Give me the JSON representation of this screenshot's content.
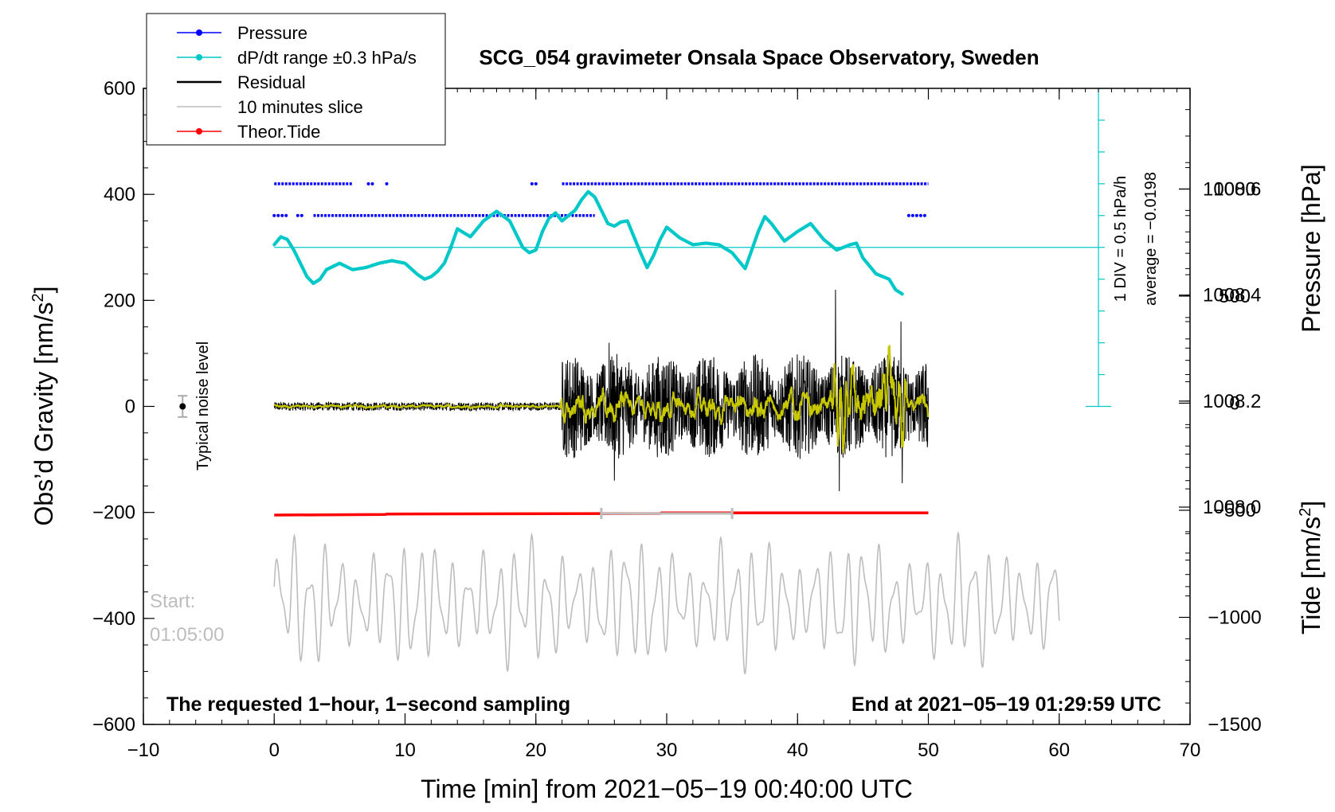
{
  "chart_data": {
    "type": "line",
    "title": "SCG_054 gravimeter Onsala Space Observatory, Sweden",
    "xlabel": "Time [min] from 2021−05−19 00:40:00 UTC",
    "ylabel_left": "Obs’d Gravity [nm/s",
    "ylabel_left_sup": "2",
    "ylabel_left_close": "]",
    "ylabel_right_pressure": "Pressure [hPa]",
    "ylabel_right_tide": "Tide [nm/s",
    "ylabel_right_tide_sup": "2",
    "ylabel_right_tide_close": "]",
    "xlim": [
      -10,
      70
    ],
    "ylim": [
      -600,
      600
    ],
    "x_ticks": [
      -10,
      0,
      10,
      20,
      30,
      40,
      50,
      60,
      70
    ],
    "x_tick_labels": [
      "−10",
      "0",
      "10",
      "20",
      "30",
      "40",
      "50",
      "60",
      "70"
    ],
    "y_ticks": [
      -600,
      -400,
      -200,
      0,
      200,
      400,
      600
    ],
    "y_tick_labels": [
      "−600",
      "−400",
      "−200",
      "0",
      "200",
      "400",
      "600"
    ],
    "pressure_ticks": [
      1008.0,
      1008.2,
      1008.4,
      1008.6
    ],
    "pressure_tick_labels": [
      "1008.0",
      "1008.2",
      "1008.4",
      "1008.6"
    ],
    "pressure_axis_map": {
      "p_at_600": 1008.79,
      "hpa_per_gravity_unit": 0.001
    },
    "tide_ticks": [
      -1500,
      -1000,
      -500,
      0,
      500,
      1000
    ],
    "tide_tick_labels": [
      "−1500",
      "−1000",
      "−500",
      "0",
      "500",
      "1000"
    ],
    "tide_axis_map": {
      "tide_at_minus600": -1500,
      "tide_per_gravity_unit": 2.475
    },
    "legend": [
      {
        "label": "Pressure",
        "color": "#0000ff",
        "style": "line-dot"
      },
      {
        "label": "dP/dt range ±0.3 hPa/s",
        "color": "#00c8c8",
        "style": "line-dot"
      },
      {
        "label": "Residual",
        "color": "#000000",
        "style": "line"
      },
      {
        "label": "10 minutes slice",
        "color": "#bdbdbd",
        "style": "line"
      },
      {
        "label": "Theor.Tide",
        "color": "#ff0000",
        "style": "line-dot"
      }
    ],
    "annotations": {
      "noise_label": "Typical noise level",
      "start_label": "Start:",
      "start_time": "01:05:00",
      "bottom_left": "The requested 1−hour, 1−second sampling",
      "bottom_right": "End at 2021−05−19 01:29:59 UTC",
      "div_label": "1 DIV = 0.5 hPa/h",
      "average_label": "average = −0.0198"
    },
    "noise_level": {
      "x": -7,
      "y": 0,
      "err": 20
    },
    "pressure_upper_level": 420,
    "pressure_lower_level": 360,
    "pressure_upper_segments": [
      [
        0,
        6
      ],
      [
        7.2,
        7.6
      ],
      [
        8.6,
        8.9
      ],
      [
        19.7,
        20.1
      ],
      [
        22,
        50
      ]
    ],
    "pressure_lower_segments": [
      [
        0,
        1.2
      ],
      [
        1.8,
        2.3
      ],
      [
        3,
        24.5
      ],
      [
        25.2,
        25.5
      ],
      [
        48.5,
        50
      ]
    ],
    "dpdt_reference_level": 300,
    "dpdt_series": {
      "x": [
        0,
        0.5,
        1,
        1.5,
        2,
        2.5,
        3,
        3.5,
        4,
        5,
        6,
        7,
        8,
        9,
        10,
        11,
        11.5,
        12,
        12.5,
        13,
        13.5,
        14,
        15,
        16,
        17,
        18,
        19,
        19.5,
        20,
        20.5,
        21,
        21.5,
        22,
        22.5,
        23,
        23.5,
        24,
        24.5,
        25,
        25.5,
        26,
        26.5,
        27,
        27.5,
        28,
        28.5,
        29,
        29.5,
        30,
        31,
        32,
        33,
        34,
        35,
        36,
        37,
        37.5,
        38,
        39,
        40,
        41,
        42,
        43,
        44,
        44.5,
        45,
        46,
        47,
        47.5,
        48
      ],
      "y": [
        305,
        320,
        315,
        295,
        270,
        245,
        232,
        240,
        258,
        270,
        258,
        262,
        270,
        275,
        270,
        248,
        240,
        245,
        255,
        270,
        300,
        335,
        320,
        350,
        368,
        350,
        300,
        290,
        295,
        330,
        355,
        365,
        350,
        360,
        370,
        390,
        405,
        395,
        370,
        345,
        340,
        348,
        350,
        320,
        290,
        262,
        285,
        315,
        338,
        318,
        305,
        308,
        305,
        290,
        260,
        330,
        358,
        345,
        312,
        330,
        345,
        315,
        295,
        305,
        308,
        280,
        250,
        240,
        220,
        212
      ]
    },
    "residual_series": {
      "x_range": [
        0,
        50
      ],
      "samples": 2600,
      "quiet_amp": 8,
      "active_start": 22,
      "active_amp": 90,
      "spikes": [
        [
          42.9,
          220
        ],
        [
          43.2,
          -160
        ],
        [
          47.9,
          160
        ],
        [
          48.0,
          -145
        ],
        [
          25.6,
          120
        ],
        [
          26.0,
          -140
        ]
      ]
    },
    "smoothed_series": {
      "x_range": [
        0,
        50
      ],
      "color": "#c8c800"
    },
    "tide_series": {
      "x": [
        0,
        8.5,
        8.6,
        29.5,
        29.6,
        50
      ],
      "y": [
        -205,
        -204,
        -203,
        -202,
        -201,
        -201
      ]
    },
    "slice_marker": {
      "x_range": [
        25,
        35
      ],
      "y": -202
    },
    "slice_series": {
      "x_range": [
        0,
        60
      ],
      "samples": 1600,
      "center": -370,
      "amp": 110
    }
  }
}
